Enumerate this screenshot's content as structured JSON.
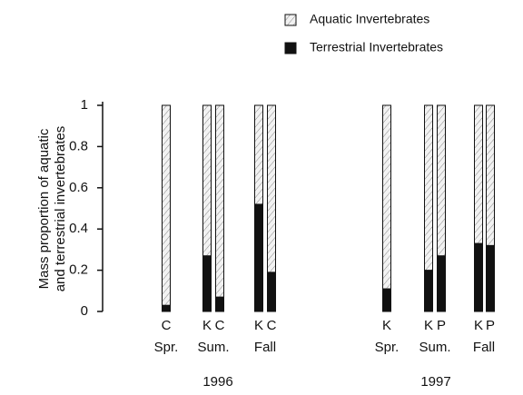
{
  "chart_data": {
    "type": "stacked-bar",
    "categories": [
      "C",
      "K",
      "C",
      "K",
      "C",
      "K",
      "K",
      "P",
      "K",
      "P"
    ],
    "season_labels": [
      "Spr.",
      "Sum.",
      "Fall",
      "Spr.",
      "Sum.",
      "Fall"
    ],
    "year_labels": [
      "1996",
      "1997"
    ],
    "ylabel": [
      "Mass proportion of aquatic",
      "and terrestrial invertebrates"
    ],
    "series": [
      {
        "name": "Aquatic Invertebrates",
        "color": "#e8e8e8",
        "values": [
          0.97,
          0.73,
          0.93,
          0.48,
          0.81,
          0.89,
          0.8,
          0.73,
          0.67,
          0.68
        ]
      },
      {
        "name": "Terrestrial Invertebrates",
        "color": "#111111",
        "values": [
          0.03,
          0.27,
          0.07,
          0.52,
          0.19,
          0.11,
          0.2,
          0.27,
          0.33,
          0.32
        ]
      }
    ],
    "ylim": [
      0,
      1
    ],
    "yticks": [
      0,
      0.2,
      0.4,
      0.6,
      0.8,
      1
    ],
    "legend": "top-right"
  }
}
